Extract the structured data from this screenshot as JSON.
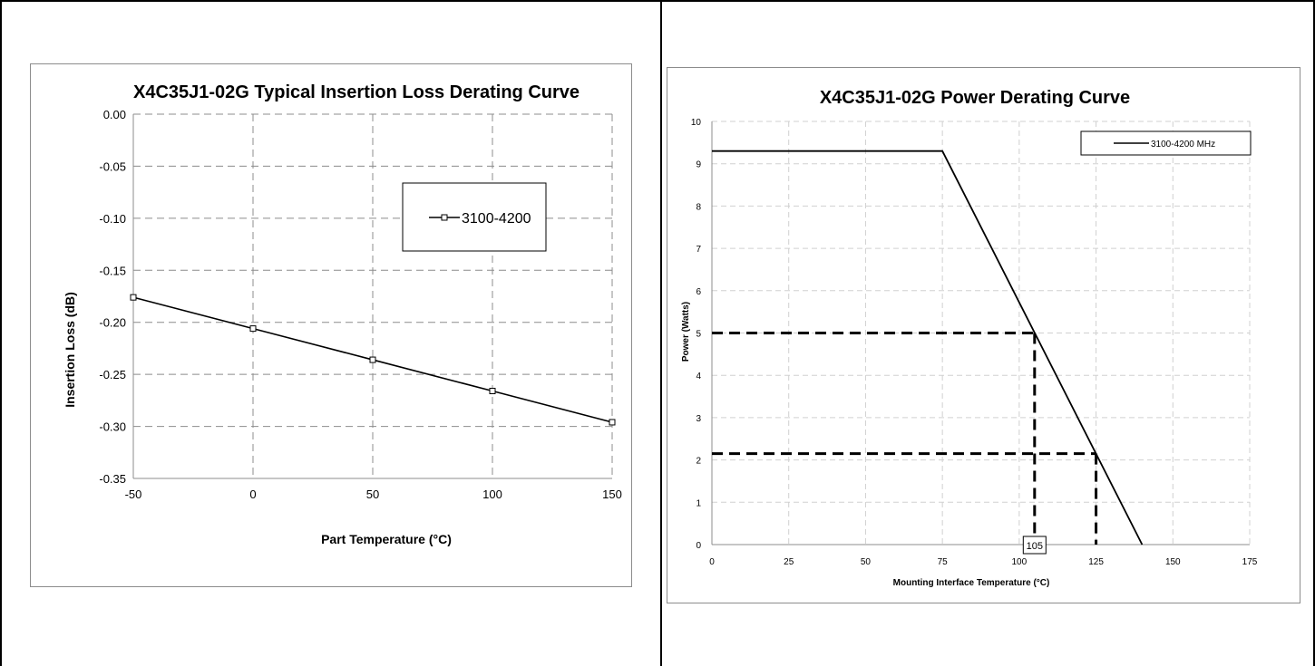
{
  "chart_data": [
    {
      "type": "line",
      "title": "X4C35J1-02G Typical Insertion Loss Derating Curve",
      "xlabel": "Part Temperature (°C)",
      "ylabel": "Insertion Loss (dB)",
      "xlim": [
        -50,
        150
      ],
      "ylim": [
        -0.35,
        0.0
      ],
      "x_ticks": [
        -50,
        0,
        50,
        100,
        150
      ],
      "x_tick_labels": [
        "-50",
        "0",
        "50",
        "100",
        "150"
      ],
      "y_ticks": [
        0.0,
        -0.05,
        -0.1,
        -0.15,
        -0.2,
        -0.25,
        -0.3,
        -0.35
      ],
      "y_tick_labels": [
        "0.00",
        "-0.05",
        "-0.10",
        "-0.15",
        "-0.20",
        "-0.25",
        "-0.30",
        "-0.35"
      ],
      "grid": "dashed",
      "legend_position": "upper-right",
      "series": [
        {
          "name": "3100-4200",
          "marker": "open-square",
          "color": "#000000",
          "x": [
            -50,
            0,
            50,
            100,
            150
          ],
          "y": [
            -0.176,
            -0.206,
            -0.236,
            -0.266,
            -0.296
          ]
        }
      ]
    },
    {
      "type": "line",
      "title": "X4C35J1-02G Power Derating Curve",
      "xlabel": "Mounting Interface Temperature (°C)",
      "ylabel": "Power (Watts)",
      "xlim": [
        0,
        175
      ],
      "ylim": [
        0,
        10
      ],
      "x_ticks": [
        0,
        25,
        50,
        75,
        100,
        125,
        150,
        175
      ],
      "x_tick_labels": [
        "0",
        "25",
        "50",
        "75",
        "100",
        "125",
        "150",
        "175"
      ],
      "y_ticks": [
        0,
        1,
        2,
        3,
        4,
        5,
        6,
        7,
        8,
        9,
        10
      ],
      "y_tick_labels": [
        "0",
        "1",
        "2",
        "3",
        "4",
        "5",
        "6",
        "7",
        "8",
        "9",
        "10"
      ],
      "grid": "dashed-light",
      "legend_position": "upper-right",
      "series": [
        {
          "name": "3100-4200 MHz",
          "color": "#000000",
          "x": [
            0,
            75,
            140
          ],
          "y": [
            9.3,
            9.3,
            0
          ]
        }
      ],
      "reference_lines": [
        {
          "x": 105,
          "y": 5.0
        },
        {
          "x": 125,
          "y": 2.15
        }
      ],
      "annotation": "105"
    }
  ]
}
